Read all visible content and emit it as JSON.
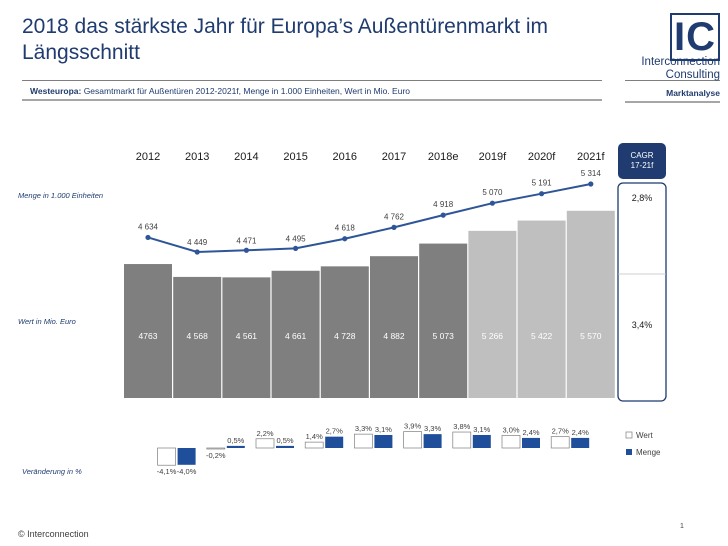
{
  "header": {
    "title": "2018 das stärkste Jahr für Europa’s Außentürenmarkt im Längsschnitt",
    "subtitle_bold": "Westeuropa:",
    "subtitle_rest": " Gesamtmarkt für Außentüren 2012-2021f,  Menge in 1.000 Einheiten, Wert in Mio. Euro",
    "section": "Marktanalyse"
  },
  "logo": {
    "mark": "IC",
    "name_line1": "Interconnection",
    "name_line2": "Consulting"
  },
  "footer": {
    "copyright": "© Interconnection",
    "page_number": "1"
  },
  "colors": {
    "title": "#1f3b6f",
    "bar_dark": "#7f7f7f",
    "bar_light": "#bfbfbf",
    "line": "#2e5597",
    "menge": "#1f4e9b",
    "wert_box": "#ffffff",
    "cagr_header": "#1f3b6f"
  },
  "chart_data": {
    "type": "bar",
    "categories": [
      "2012",
      "2013",
      "2014",
      "2015",
      "2016",
      "2017",
      "2018e",
      "2019f",
      "2020f",
      "2021f"
    ],
    "forecast_from_index": 7,
    "menge_label": "Menge in 1.000 Einheiten",
    "menge_values": [
      4634,
      4449,
      4471,
      4495,
      4618,
      4762,
      4918,
      5070,
      5191,
      5314
    ],
    "menge_display": [
      "4 634",
      "4 449",
      "4 471",
      "4 495",
      "4 618",
      "4 762",
      "4 918",
      "5 070",
      "5 191",
      "5 314"
    ],
    "wert_label": "Wert in Mio. Euro",
    "wert_values": [
      4763,
      4568,
      4561,
      4661,
      4728,
      4882,
      5073,
      5266,
      5422,
      5570
    ],
    "wert_display": [
      "4763",
      "4 568",
      "4 561",
      "4 661",
      "4 728",
      "4 882",
      "5 073",
      "5 266",
      "5 422",
      "5 570"
    ],
    "change_label": "Veränderung in %",
    "change_legend": [
      "Wert",
      "Menge"
    ],
    "change_wert": [
      null,
      -4.1,
      -0.2,
      2.2,
      1.4,
      3.3,
      3.9,
      3.8,
      3.0,
      2.7
    ],
    "change_menge": [
      null,
      -4.0,
      0.5,
      0.5,
      2.7,
      3.1,
      3.3,
      3.1,
      2.4,
      2.4
    ],
    "change_wert_display": [
      null,
      "-4,1%",
      "-0,2%",
      "2,2%",
      "1,4%",
      "3,3%",
      "3,9%",
      "3,8%",
      "3,0%",
      "2,7%"
    ],
    "change_menge_display": [
      null,
      "-4,0%",
      "0,5%",
      "0,5%",
      "2,7%",
      "3,1%",
      "3,3%",
      "3,1%",
      "2,4%",
      "2,4%"
    ],
    "cagr": {
      "header": "CAGR 17-21f",
      "menge": "2,8%",
      "wert": "3,4%"
    }
  }
}
